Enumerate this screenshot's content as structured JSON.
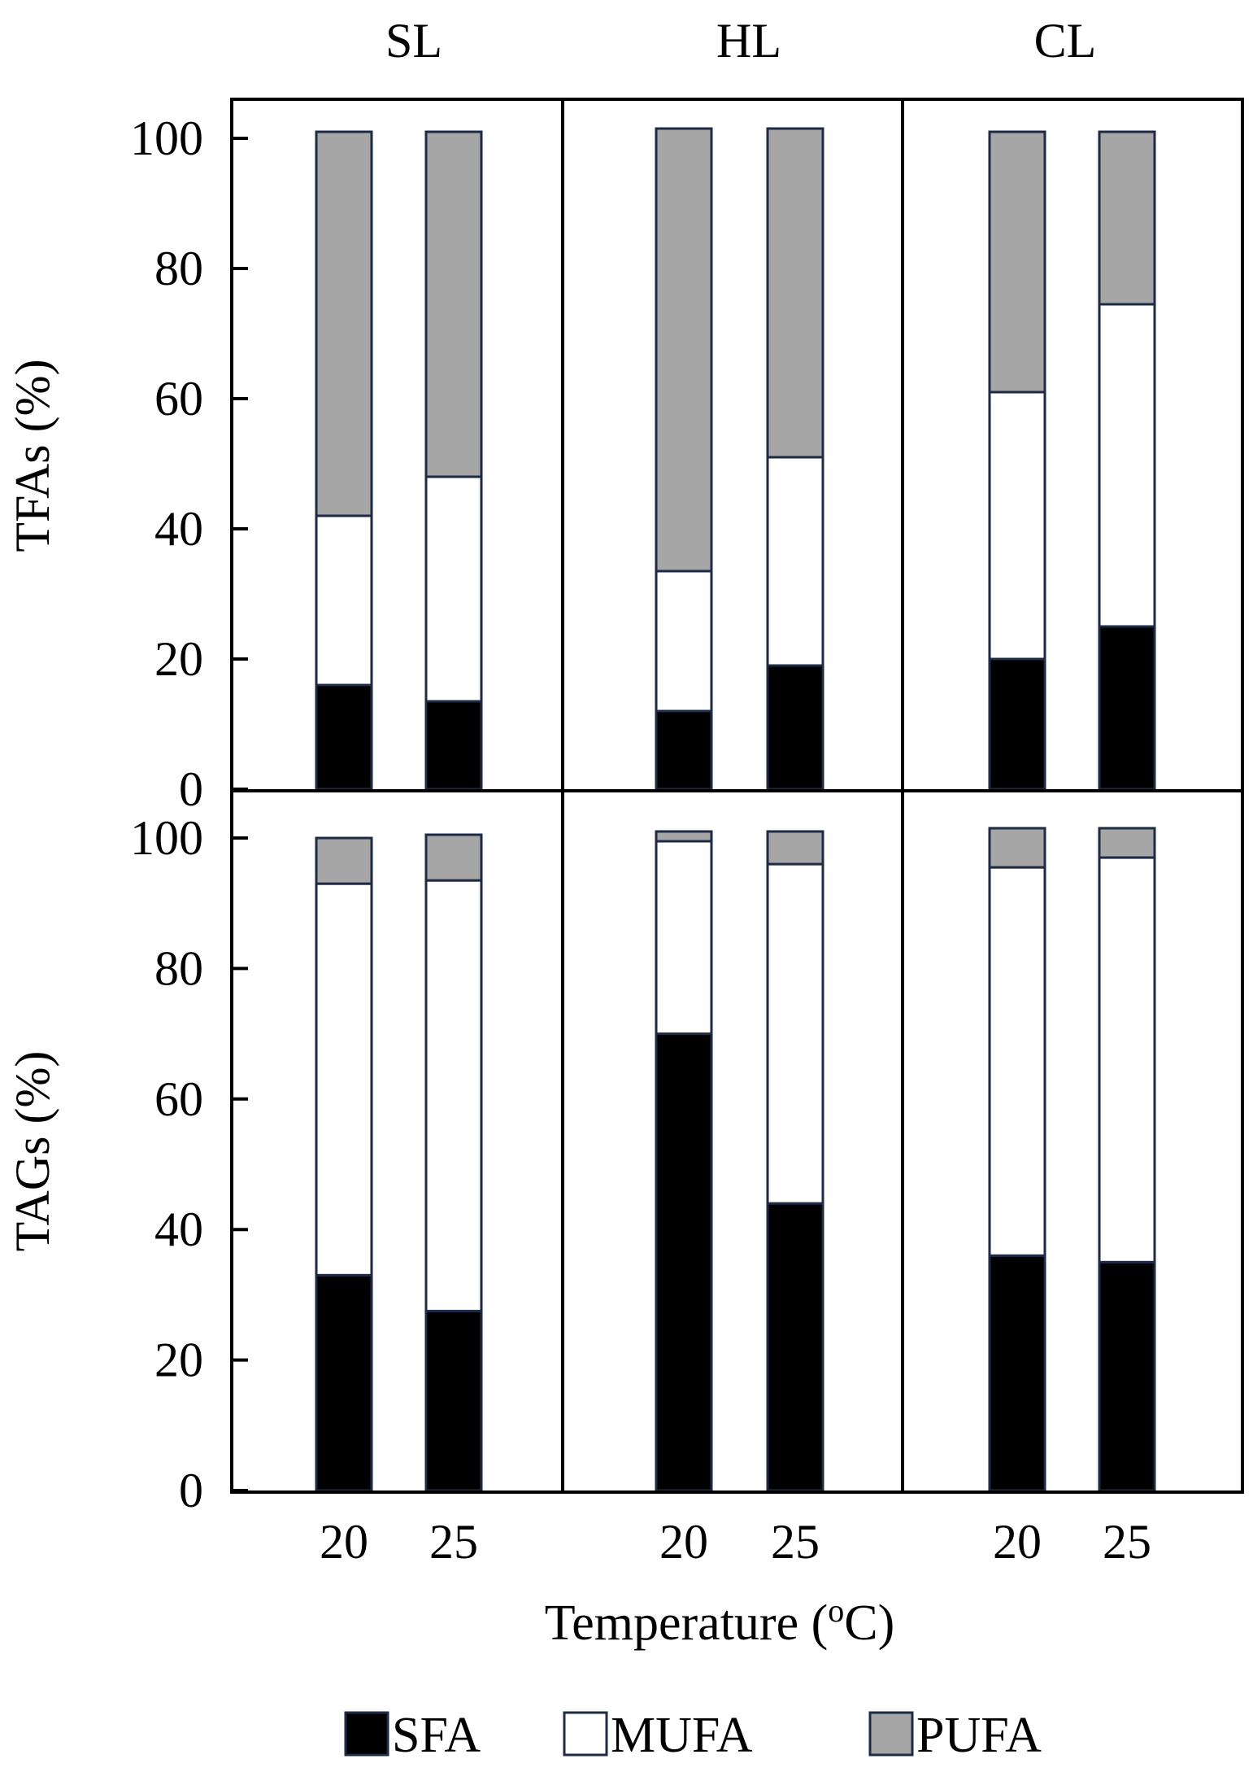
{
  "chart_data": {
    "type": "bar",
    "stacked": true,
    "panel_titles": [
      "SL",
      "HL",
      "CL"
    ],
    "row_labels": [
      "TFAs (%)",
      "TAGs (%)"
    ],
    "categories": [
      "20",
      "25"
    ],
    "xlabel": "Temperature (",
    "xlabel_sup": "o",
    "xlabel_tail": "C)",
    "ylim": [
      0,
      100
    ],
    "yticks": [
      "0",
      "20",
      "40",
      "60",
      "80",
      "100"
    ],
    "legend_position": "bottom",
    "legend": [
      "SFA",
      "MUFA",
      "PUFA"
    ],
    "series_colors": {
      "SFA": "#000000",
      "MUFA": "#ffffff",
      "PUFA": "#a6a6a6"
    },
    "panels": [
      {
        "row": "TFAs",
        "group": "SL",
        "series": [
          {
            "name": "SFA",
            "values": [
              16,
              13.5
            ]
          },
          {
            "name": "MUFA",
            "values": [
              26,
              34.5
            ]
          },
          {
            "name": "PUFA",
            "values": [
              59,
              53
            ]
          }
        ]
      },
      {
        "row": "TFAs",
        "group": "HL",
        "series": [
          {
            "name": "SFA",
            "values": [
              12,
              19
            ]
          },
          {
            "name": "MUFA",
            "values": [
              21.5,
              32
            ]
          },
          {
            "name": "PUFA",
            "values": [
              68,
              50.5
            ]
          }
        ]
      },
      {
        "row": "TFAs",
        "group": "CL",
        "series": [
          {
            "name": "SFA",
            "values": [
              20,
              25
            ]
          },
          {
            "name": "MUFA",
            "values": [
              41,
              49.5
            ]
          },
          {
            "name": "PUFA",
            "values": [
              40,
              26.5
            ]
          }
        ]
      },
      {
        "row": "TAGs",
        "group": "SL",
        "series": [
          {
            "name": "SFA",
            "values": [
              33,
              27.5
            ]
          },
          {
            "name": "MUFA",
            "values": [
              60,
              66
            ]
          },
          {
            "name": "PUFA",
            "values": [
              7,
              7
            ]
          }
        ]
      },
      {
        "row": "TAGs",
        "group": "HL",
        "series": [
          {
            "name": "SFA",
            "values": [
              70,
              44
            ]
          },
          {
            "name": "MUFA",
            "values": [
              29.5,
              52
            ]
          },
          {
            "name": "PUFA",
            "values": [
              1.5,
              5
            ]
          }
        ]
      },
      {
        "row": "TAGs",
        "group": "CL",
        "series": [
          {
            "name": "SFA",
            "values": [
              36,
              35
            ]
          },
          {
            "name": "MUFA",
            "values": [
              59.5,
              62
            ]
          },
          {
            "name": "PUFA",
            "values": [
              6,
              4.5
            ]
          }
        ]
      }
    ]
  }
}
